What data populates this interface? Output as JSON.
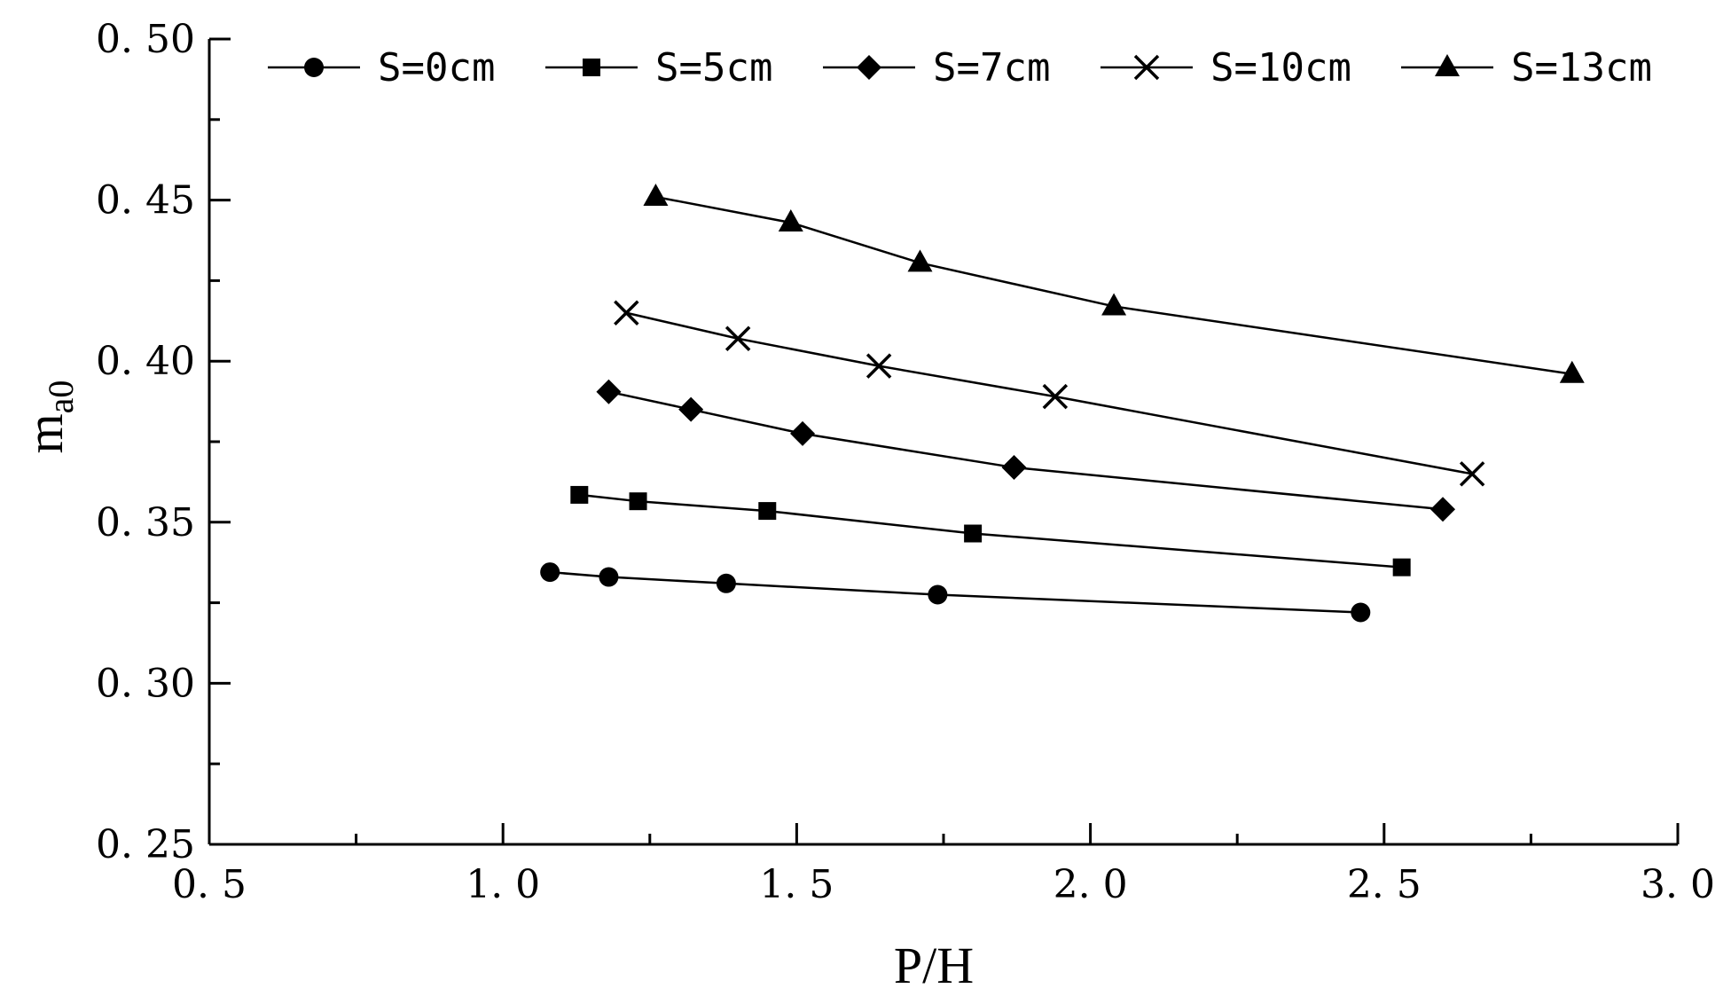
{
  "chart_data": {
    "type": "line",
    "title": "",
    "xlabel": "P/H",
    "ylabel": "m",
    "ylabel_subscript": "a0",
    "xlim": [
      0.5,
      3.0
    ],
    "ylim": [
      0.25,
      0.5
    ],
    "x_ticks": [
      0.5,
      1.0,
      1.5,
      2.0,
      2.5,
      3.0
    ],
    "x_tick_labels": [
      "0. 5",
      "1. 0",
      "1. 5",
      "2. 0",
      "2. 5",
      "3. 0"
    ],
    "y_ticks": [
      0.25,
      0.3,
      0.35,
      0.4,
      0.45,
      0.5
    ],
    "y_tick_labels": [
      "0. 25",
      "0. 30",
      "0. 35",
      "0. 40",
      "0. 45",
      "0. 50"
    ],
    "grid": false,
    "legend_position": "top",
    "series": [
      {
        "name": "S=0cm",
        "marker": "circle",
        "x": [
          1.08,
          1.18,
          1.38,
          1.74,
          2.46
        ],
        "y": [
          0.3345,
          0.333,
          0.331,
          0.3275,
          0.322
        ]
      },
      {
        "name": "S=5cm",
        "marker": "square",
        "x": [
          1.13,
          1.23,
          1.45,
          1.8,
          2.53
        ],
        "y": [
          0.3585,
          0.3565,
          0.3535,
          0.3465,
          0.336
        ]
      },
      {
        "name": "S=7cm",
        "marker": "diamond",
        "x": [
          1.18,
          1.32,
          1.51,
          1.87,
          2.6
        ],
        "y": [
          0.3905,
          0.385,
          0.3775,
          0.367,
          0.354
        ]
      },
      {
        "name": "S=10cm",
        "marker": "x",
        "x": [
          1.21,
          1.4,
          1.64,
          1.94,
          2.65
        ],
        "y": [
          0.415,
          0.407,
          0.3985,
          0.389,
          0.365
        ]
      },
      {
        "name": "S=13cm",
        "marker": "triangle",
        "x": [
          1.26,
          1.49,
          1.71,
          2.04,
          2.82
        ],
        "y": [
          0.451,
          0.443,
          0.4305,
          0.417,
          0.396
        ]
      }
    ]
  }
}
